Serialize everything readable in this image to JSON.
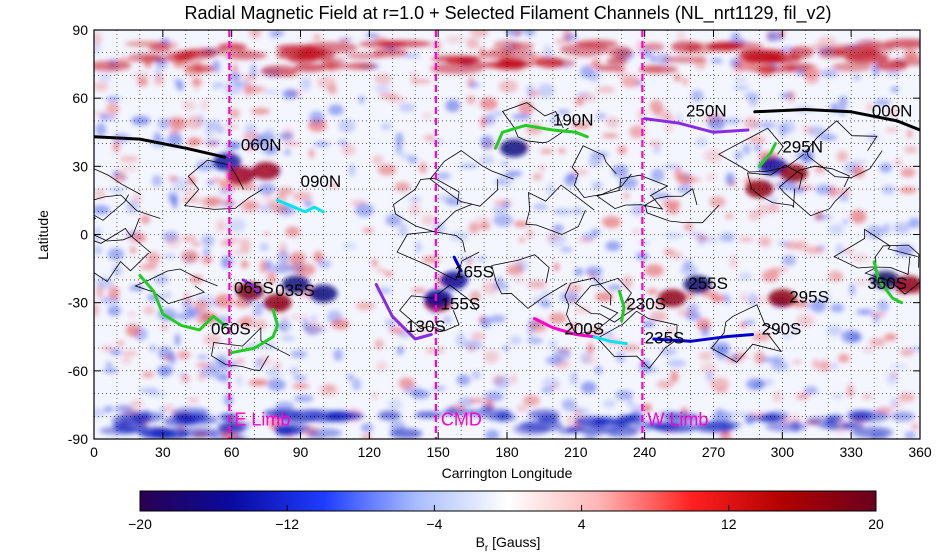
{
  "chart_data": {
    "type": "heatmap",
    "title": "Radial Magnetic Field at r=1.0 + Selected Filament Channels (NL_nrt1129, fil_v2)",
    "xlabel": "Carrington Longitude",
    "ylabel": "Latitude",
    "xlim": [
      0,
      360
    ],
    "ylim": [
      -90,
      90
    ],
    "xticks": [
      0,
      30,
      60,
      90,
      120,
      150,
      180,
      210,
      240,
      270,
      300,
      330,
      360
    ],
    "yticks": [
      -90,
      -60,
      -30,
      0,
      30,
      60,
      90
    ],
    "grid": true,
    "colorbar": {
      "label_main": "B",
      "label_sub": "r",
      "label_unit": "[Gauss]",
      "range": [
        -20,
        20
      ],
      "ticks": [
        -20,
        -12,
        -4,
        4,
        12,
        20
      ],
      "colors": [
        "#2a0050",
        "#0a0aa0",
        "#1e3cff",
        "#a8bcff",
        "#ffffff",
        "#ffb4b4",
        "#ff2020",
        "#b00000",
        "#6a0020"
      ]
    },
    "vertical_lines": [
      {
        "label": "E Limb",
        "x": 59,
        "color": "#ff00cc"
      },
      {
        "label": "CMD",
        "x": 149,
        "color": "#ff00cc"
      },
      {
        "label": "W Limb",
        "x": 239,
        "color": "#ff00cc"
      }
    ],
    "filament_labels": [
      {
        "text": "060N",
        "x": 64,
        "y": 37
      },
      {
        "text": "090N",
        "x": 90,
        "y": 21
      },
      {
        "text": "190N",
        "x": 200,
        "y": 48
      },
      {
        "text": "250N",
        "x": 258,
        "y": 52
      },
      {
        "text": "000N",
        "x": 339,
        "y": 52
      },
      {
        "text": "295N",
        "x": 300,
        "y": 36
      },
      {
        "text": "165S",
        "x": 157,
        "y": -19
      },
      {
        "text": "065S",
        "x": 61,
        "y": -26
      },
      {
        "text": "035S",
        "x": 79,
        "y": -27
      },
      {
        "text": "155S",
        "x": 151,
        "y": -33
      },
      {
        "text": "130S",
        "x": 136,
        "y": -43
      },
      {
        "text": "060S",
        "x": 51,
        "y": -44
      },
      {
        "text": "200S",
        "x": 205,
        "y": -44
      },
      {
        "text": "230S",
        "x": 232,
        "y": -33
      },
      {
        "text": "235S",
        "x": 240,
        "y": -48
      },
      {
        "text": "255S",
        "x": 259,
        "y": -24
      },
      {
        "text": "290S",
        "x": 291,
        "y": -44
      },
      {
        "text": "295S",
        "x": 303,
        "y": -30
      },
      {
        "text": "350S",
        "x": 337,
        "y": -24
      }
    ],
    "filament_channels": [
      {
        "color": "#000000",
        "points": [
          [
            0,
            43
          ],
          [
            20,
            42
          ],
          [
            40,
            38
          ],
          [
            57,
            34
          ]
        ]
      },
      {
        "color": "#000000",
        "points": [
          [
            288,
            54
          ],
          [
            310,
            55
          ],
          [
            330,
            54
          ],
          [
            350,
            50
          ],
          [
            360,
            46
          ]
        ]
      },
      {
        "color": "#22cc22",
        "points": [
          [
            175,
            38
          ],
          [
            178,
            45
          ],
          [
            188,
            48
          ],
          [
            200,
            46
          ],
          [
            210,
            45
          ],
          [
            215,
            43
          ]
        ]
      },
      {
        "color": "#8a2be2",
        "points": [
          [
            240,
            51
          ],
          [
            255,
            49
          ],
          [
            270,
            45
          ],
          [
            285,
            46
          ]
        ]
      },
      {
        "color": "#22cc22",
        "points": [
          [
            290,
            30
          ],
          [
            295,
            36
          ],
          [
            297,
            40
          ]
        ]
      },
      {
        "color": "#00e5ee",
        "points": [
          [
            80,
            15
          ],
          [
            85,
            13
          ],
          [
            92,
            10
          ],
          [
            96,
            12
          ],
          [
            100,
            10
          ]
        ]
      },
      {
        "color": "#22cc22",
        "points": [
          [
            20,
            -18
          ],
          [
            26,
            -25
          ],
          [
            30,
            -35
          ],
          [
            38,
            -40
          ],
          [
            46,
            -42
          ],
          [
            52,
            -36
          ],
          [
            57,
            -40
          ]
        ]
      },
      {
        "color": "#22cc22",
        "points": [
          [
            60,
            -52
          ],
          [
            70,
            -50
          ],
          [
            78,
            -45
          ],
          [
            80,
            -40
          ],
          [
            78,
            -33
          ]
        ]
      },
      {
        "color": "#8a2be2",
        "points": [
          [
            65,
            -20
          ],
          [
            70,
            -23
          ],
          [
            72,
            -26
          ]
        ]
      },
      {
        "color": "#8a2be2",
        "points": [
          [
            123,
            -22
          ],
          [
            130,
            -36
          ],
          [
            140,
            -46
          ],
          [
            147,
            -44
          ]
        ]
      },
      {
        "color": "#0000cc",
        "points": [
          [
            157,
            -10
          ],
          [
            160,
            -16
          ]
        ]
      },
      {
        "color": "#ff00cc",
        "points": [
          [
            192,
            -37
          ],
          [
            200,
            -41
          ],
          [
            210,
            -44
          ],
          [
            218,
            -45
          ]
        ]
      },
      {
        "color": "#00e5ee",
        "points": [
          [
            218,
            -45
          ],
          [
            225,
            -47
          ],
          [
            232,
            -48
          ]
        ]
      },
      {
        "color": "#22cc22",
        "points": [
          [
            229,
            -25
          ],
          [
            231,
            -32
          ],
          [
            230,
            -38
          ]
        ]
      },
      {
        "color": "#0000cc",
        "points": [
          [
            244,
            -46
          ],
          [
            260,
            -47
          ],
          [
            275,
            -45
          ],
          [
            287,
            -44
          ]
        ]
      },
      {
        "color": "#22cc22",
        "points": [
          [
            340,
            -12
          ],
          [
            342,
            -20
          ],
          [
            348,
            -28
          ],
          [
            352,
            -30
          ]
        ]
      }
    ]
  }
}
